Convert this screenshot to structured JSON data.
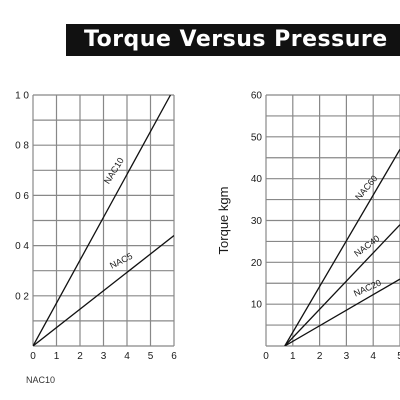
{
  "header": {
    "title": "Torque Versus Pressure"
  },
  "footnote": "NAC10",
  "chart_data": [
    {
      "type": "line",
      "title": "",
      "xlabel": "",
      "ylabel": "",
      "xlim": [
        0,
        6
      ],
      "ylim": [
        0,
        1.0
      ],
      "x_ticks": [
        "0",
        "1",
        "2",
        "3",
        "4",
        "5",
        "6"
      ],
      "y_ticks": [
        "0 2",
        "0 4",
        "0 6",
        "0 8",
        "1 0"
      ],
      "y_tick_values": [
        0.2,
        0.4,
        0.6,
        0.8,
        1.0
      ],
      "grid": true,
      "series": [
        {
          "name": "NAC10",
          "x": [
            0,
            5.85
          ],
          "y": [
            0,
            1.0
          ]
        },
        {
          "name": "NAC5",
          "x": [
            0,
            6
          ],
          "y": [
            0,
            0.44
          ]
        }
      ]
    },
    {
      "type": "line",
      "title": "",
      "xlabel": "",
      "ylabel": "Torque kgm",
      "xlim": [
        0,
        5
      ],
      "ylim": [
        0,
        60
      ],
      "x_ticks": [
        "0",
        "1",
        "2",
        "3",
        "4",
        "5"
      ],
      "y_ticks": [
        "10",
        "20",
        "30",
        "40",
        "50",
        "60"
      ],
      "y_tick_values": [
        10,
        20,
        30,
        40,
        50,
        60
      ],
      "grid": true,
      "series": [
        {
          "name": "NAC60",
          "x": [
            0.7,
            5
          ],
          "y": [
            0,
            47
          ]
        },
        {
          "name": "NAC40",
          "x": [
            0.7,
            5
          ],
          "y": [
            0,
            29
          ]
        },
        {
          "name": "NAC20",
          "x": [
            0.7,
            5
          ],
          "y": [
            0,
            16
          ]
        }
      ]
    }
  ]
}
